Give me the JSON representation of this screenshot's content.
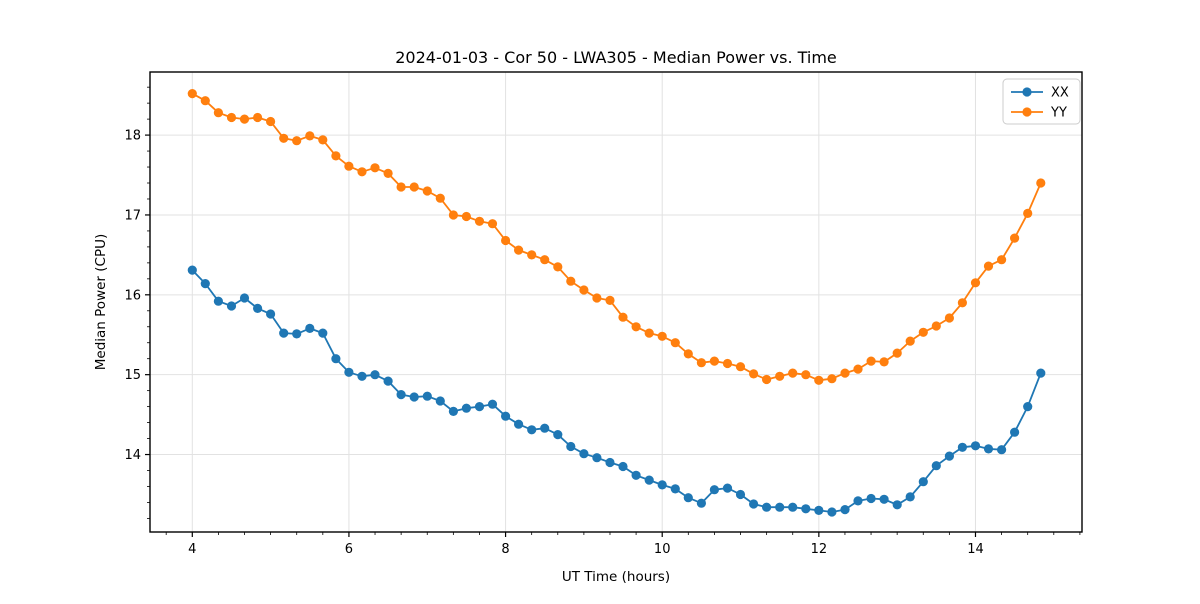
{
  "chart_data": {
    "type": "line",
    "title": "2024-01-03 - Cor 50 - LWA305 - Median Power vs. Time",
    "xlabel": "UT Time (hours)",
    "ylabel": "Median Power (CPU)",
    "xlim": [
      3.46,
      15.36
    ],
    "ylim": [
      13.03,
      18.79
    ],
    "xticks": [
      4,
      6,
      8,
      10,
      12,
      14
    ],
    "xtick_labels": [
      "4",
      "6",
      "8",
      "10",
      "12",
      "14"
    ],
    "yticks": [
      14,
      15,
      16,
      17,
      18
    ],
    "ytick_labels": [
      "14",
      "15",
      "16",
      "17",
      "18"
    ],
    "x_minor_step": 0.33333,
    "y_minor_step": 0.2,
    "grid": true,
    "grid_color": "#e2e2e2",
    "legend_position": "upper right",
    "x_start": 4.0,
    "x_step": 0.1666667,
    "series": [
      {
        "name": "XX",
        "color": "#1f77b4",
        "values": [
          16.31,
          16.14,
          15.92,
          15.86,
          15.96,
          15.83,
          15.76,
          15.52,
          15.51,
          15.58,
          15.52,
          15.2,
          15.03,
          14.98,
          15.0,
          14.92,
          14.75,
          14.72,
          14.73,
          14.67,
          14.54,
          14.58,
          14.6,
          14.63,
          14.48,
          14.38,
          14.31,
          14.33,
          14.25,
          14.1,
          14.01,
          13.96,
          13.9,
          13.85,
          13.74,
          13.68,
          13.62,
          13.57,
          13.46,
          13.39,
          13.56,
          13.58,
          13.5,
          13.38,
          13.34,
          13.34,
          13.34,
          13.32,
          13.3,
          13.28,
          13.31,
          13.42,
          13.45,
          13.44,
          13.37,
          13.47,
          13.66,
          13.86,
          13.98,
          14.09,
          14.11,
          14.07,
          14.06,
          14.28,
          14.6,
          15.02
        ]
      },
      {
        "name": "YY",
        "color": "#ff7f0e",
        "values": [
          18.52,
          18.43,
          18.28,
          18.22,
          18.2,
          18.22,
          18.17,
          17.96,
          17.93,
          17.99,
          17.94,
          17.74,
          17.61,
          17.54,
          17.59,
          17.52,
          17.35,
          17.35,
          17.3,
          17.21,
          17.0,
          16.98,
          16.92,
          16.89,
          16.68,
          16.56,
          16.5,
          16.44,
          16.35,
          16.17,
          16.06,
          15.96,
          15.93,
          15.72,
          15.6,
          15.52,
          15.48,
          15.4,
          15.26,
          15.15,
          15.17,
          15.14,
          15.1,
          15.01,
          14.94,
          14.98,
          15.02,
          15.0,
          14.93,
          14.95,
          15.02,
          15.07,
          15.17,
          15.16,
          15.27,
          15.42,
          15.53,
          15.61,
          15.71,
          15.9,
          16.15,
          16.36,
          16.44,
          16.71,
          17.02,
          17.4
        ]
      }
    ]
  }
}
